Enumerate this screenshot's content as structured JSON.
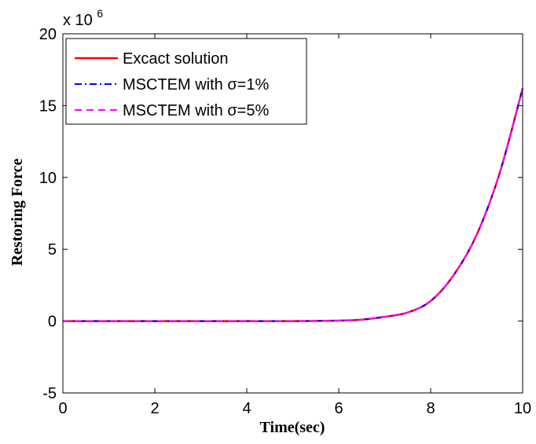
{
  "chart_data": {
    "type": "line",
    "title": "",
    "xlabel": "Time(sec)",
    "ylabel": "Restoring Force",
    "y_multiplier": "x 10",
    "y_multiplier_exp": "6",
    "xlim": [
      0,
      10
    ],
    "ylim": [
      -5,
      20
    ],
    "x_ticks": [
      "0",
      "2",
      "4",
      "6",
      "8",
      "10"
    ],
    "y_ticks": [
      "-5",
      "0",
      "5",
      "10",
      "15",
      "20"
    ],
    "grid": false,
    "legend_position": "top-left",
    "x": [
      0,
      1,
      2,
      3,
      4,
      5,
      6,
      6.5,
      7,
      7.5,
      8,
      8.5,
      9,
      9.5,
      10
    ],
    "series": [
      {
        "name": "Excact solution",
        "color": "#ff0000",
        "style": "solid",
        "values": [
          0,
          0,
          0,
          0,
          0,
          0,
          0.03,
          0.1,
          0.3,
          0.6,
          1.4,
          3.2,
          6.0,
          10.3,
          16.2
        ]
      },
      {
        "name": "MSCTEM with σ=1%",
        "color": "#0000ff",
        "style": "dashdot",
        "values": [
          0,
          0,
          0,
          0,
          0,
          0,
          0.03,
          0.1,
          0.3,
          0.6,
          1.4,
          3.2,
          6.0,
          10.3,
          16.2
        ]
      },
      {
        "name": "MSCTEM with σ=5%",
        "color": "#ff00ff",
        "style": "dashed",
        "values": [
          0,
          0,
          0,
          0,
          0,
          0,
          0.03,
          0.1,
          0.3,
          0.6,
          1.4,
          3.2,
          6.0,
          10.3,
          16.2
        ]
      }
    ]
  }
}
